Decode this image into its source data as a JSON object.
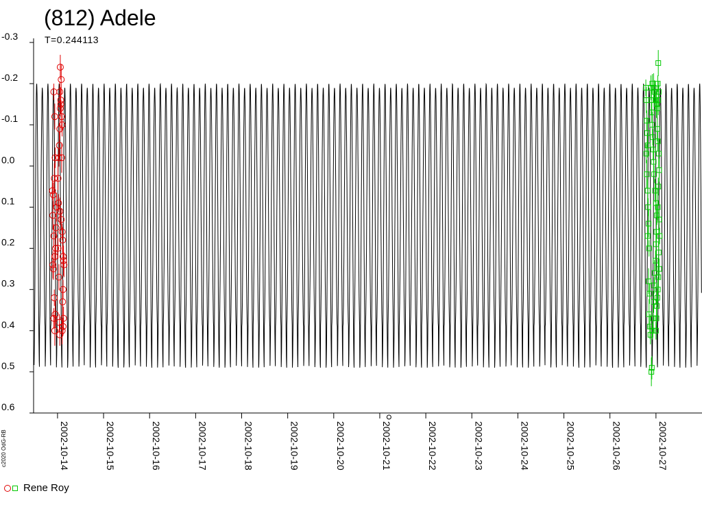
{
  "chart_data": {
    "type": "scatter",
    "title": "(812) Adele",
    "subtitle": "T=0.244113",
    "copyright": "c2020 OdG-RB",
    "x_ticks": [
      "2002-10-14",
      "2002-10-15",
      "2002-10-16",
      "2002-10-17",
      "2002-10-18",
      "2002-10-19",
      "2002-10-20",
      "2002-10-21",
      "2002-10-22",
      "2002-10-23",
      "2002-10-24",
      "2002-10-25",
      "2002-10-26",
      "2002-10-27"
    ],
    "y_ticks": [
      "-0.3",
      "-0.2",
      "-0.1",
      "0.0",
      "0.1",
      "0.2",
      "0.3",
      "0.4",
      "0.5",
      "0.6"
    ],
    "xlim": [
      "2002-10-13.48",
      "2002-10-28.00"
    ],
    "ylim": [
      -0.3,
      0.6
    ],
    "y_inverted": true,
    "model_curve": {
      "period_days": 0.244113,
      "phase_offset_days": 0.06,
      "max_mag": 0.49,
      "min_mag": -0.2,
      "secondary_max_mag": 0.39,
      "secondary_min_mag": -0.19
    },
    "zero_point_marker": {
      "x_day": 21.2,
      "y_mag": 0.61
    },
    "legend": {
      "observer": "Rene Roy",
      "colors": [
        "#e00000",
        "#00c800"
      ]
    },
    "series": [
      {
        "symbol": "circle",
        "color": "#e00000",
        "points": [
          [
            13.92,
            -0.18
          ],
          [
            13.94,
            -0.12
          ],
          [
            13.95,
            -0.02
          ],
          [
            13.93,
            0.03
          ],
          [
            13.91,
            0.07
          ],
          [
            13.89,
            0.06
          ],
          [
            13.9,
            0.12
          ],
          [
            13.92,
            0.17
          ],
          [
            13.94,
            0.22
          ],
          [
            13.9,
            0.24
          ],
          [
            13.91,
            0.25
          ],
          [
            13.93,
            0.32
          ],
          [
            13.95,
            0.36
          ],
          [
            13.92,
            0.37
          ],
          [
            13.94,
            0.4
          ],
          [
            13.96,
            0.2
          ],
          [
            13.97,
            0.15
          ],
          [
            13.98,
            0.1
          ],
          [
            14.01,
            0.03
          ],
          [
            14.03,
            -0.02
          ],
          [
            14.04,
            -0.05
          ],
          [
            14.05,
            -0.09
          ],
          [
            14.06,
            -0.14
          ],
          [
            14.07,
            -0.16
          ],
          [
            14.05,
            -0.18
          ],
          [
            14.08,
            -0.21
          ],
          [
            14.06,
            -0.24
          ],
          [
            14.07,
            -0.15
          ],
          [
            14.09,
            -0.12
          ],
          [
            14.1,
            -0.1
          ],
          [
            14.02,
            0.09
          ],
          [
            14.05,
            0.11
          ],
          [
            14.08,
            0.13
          ],
          [
            14.1,
            0.16
          ],
          [
            14.11,
            0.18
          ],
          [
            14.12,
            0.22
          ],
          [
            14.13,
            0.23
          ],
          [
            14.14,
            0.24
          ],
          [
            14.12,
            0.3
          ],
          [
            14.11,
            0.33
          ],
          [
            14.13,
            0.37
          ],
          [
            14.12,
            0.39
          ],
          [
            14.1,
            0.4
          ],
          [
            14.05,
            0.41
          ],
          [
            14.04,
            0.38
          ],
          [
            14.03,
            0.27
          ],
          [
            14.01,
            0.2
          ],
          [
            14.09,
            -0.02
          ]
        ]
      },
      {
        "symbol": "square",
        "color": "#00c800",
        "points": [
          [
            26.78,
            -0.19
          ],
          [
            26.79,
            -0.16
          ],
          [
            26.8,
            -0.11
          ],
          [
            26.81,
            -0.08
          ],
          [
            26.82,
            -0.05
          ],
          [
            26.79,
            -0.03
          ],
          [
            26.8,
            0.02
          ],
          [
            26.82,
            0.06
          ],
          [
            26.83,
            0.1
          ],
          [
            26.84,
            0.14
          ],
          [
            26.82,
            0.17
          ],
          [
            26.85,
            0.2
          ],
          [
            26.84,
            0.28
          ],
          [
            26.86,
            0.31
          ],
          [
            26.85,
            0.36
          ],
          [
            26.87,
            0.39
          ],
          [
            26.88,
            0.41
          ],
          [
            26.9,
            0.5
          ],
          [
            26.91,
            0.49
          ],
          [
            26.92,
            0.4
          ],
          [
            26.94,
            0.37
          ],
          [
            26.95,
            0.33
          ],
          [
            26.96,
            0.29
          ],
          [
            26.97,
            0.26
          ],
          [
            26.99,
            0.23
          ],
          [
            27.0,
            0.19
          ],
          [
            27.01,
            0.16
          ],
          [
            27.02,
            0.12
          ],
          [
            27.0,
            0.09
          ],
          [
            26.98,
            0.06
          ],
          [
            26.96,
            0.02
          ],
          [
            26.95,
            -0.01
          ],
          [
            26.94,
            -0.04
          ],
          [
            26.93,
            -0.07
          ],
          [
            26.92,
            -0.1
          ],
          [
            26.91,
            -0.13
          ],
          [
            26.9,
            -0.16
          ],
          [
            26.89,
            -0.19
          ],
          [
            26.92,
            -0.2
          ],
          [
            26.95,
            -0.19
          ],
          [
            26.97,
            -0.18
          ],
          [
            26.99,
            -0.16
          ],
          [
            27.01,
            -0.15
          ],
          [
            27.03,
            -0.14
          ],
          [
            27.04,
            -0.2
          ],
          [
            27.05,
            -0.25
          ],
          [
            27.06,
            -0.18
          ],
          [
            27.05,
            -0.16
          ],
          [
            27.03,
            -0.09
          ],
          [
            27.04,
            -0.06
          ],
          [
            27.06,
            -0.03
          ],
          [
            27.07,
            0.01
          ],
          [
            27.05,
            0.05
          ],
          [
            27.04,
            0.1
          ],
          [
            27.07,
            0.13
          ],
          [
            27.08,
            0.17
          ],
          [
            27.06,
            0.21
          ],
          [
            27.07,
            0.25
          ],
          [
            27.05,
            0.27
          ],
          [
            27.04,
            0.3
          ],
          [
            27.03,
            0.32
          ],
          [
            27.02,
            0.34
          ],
          [
            27.01,
            0.37
          ],
          [
            27.0,
            0.4
          ]
        ]
      }
    ]
  }
}
